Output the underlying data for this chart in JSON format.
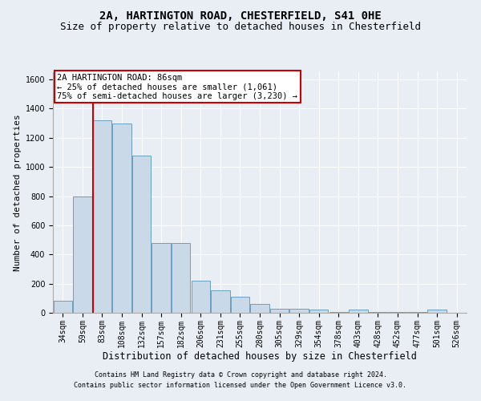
{
  "title1": "2A, HARTINGTON ROAD, CHESTERFIELD, S41 0HE",
  "title2": "Size of property relative to detached houses in Chesterfield",
  "xlabel": "Distribution of detached houses by size in Chesterfield",
  "ylabel": "Number of detached properties",
  "bar_labels": [
    "34sqm",
    "59sqm",
    "83sqm",
    "108sqm",
    "132sqm",
    "157sqm",
    "182sqm",
    "206sqm",
    "231sqm",
    "255sqm",
    "280sqm",
    "305sqm",
    "329sqm",
    "354sqm",
    "378sqm",
    "403sqm",
    "428sqm",
    "452sqm",
    "477sqm",
    "501sqm",
    "526sqm"
  ],
  "bar_values": [
    80,
    800,
    1320,
    1300,
    1080,
    480,
    480,
    220,
    155,
    110,
    60,
    30,
    25,
    20,
    5,
    20,
    5,
    5,
    5,
    20,
    0
  ],
  "bar_color": "#c9d9e8",
  "bar_edge_color": "#6a9fc0",
  "vline_x": 1.52,
  "vline_color": "#cc0000",
  "annotation_text": "2A HARTINGTON ROAD: 86sqm\n← 25% of detached houses are smaller (1,061)\n75% of semi-detached houses are larger (3,230) →",
  "annotation_box_color": "#cc0000",
  "ylim": [
    0,
    1650
  ],
  "yticks": [
    0,
    200,
    400,
    600,
    800,
    1000,
    1200,
    1400,
    1600
  ],
  "footer1": "Contains HM Land Registry data © Crown copyright and database right 2024.",
  "footer2": "Contains public sector information licensed under the Open Government Licence v3.0.",
  "bg_color": "#e8eef4",
  "plot_bg_color": "#e8eef4",
  "title1_fontsize": 10,
  "title2_fontsize": 9,
  "annotation_fontsize": 7.5,
  "ylabel_fontsize": 8,
  "xlabel_fontsize": 8.5,
  "tick_fontsize": 7,
  "footer_fontsize": 6
}
